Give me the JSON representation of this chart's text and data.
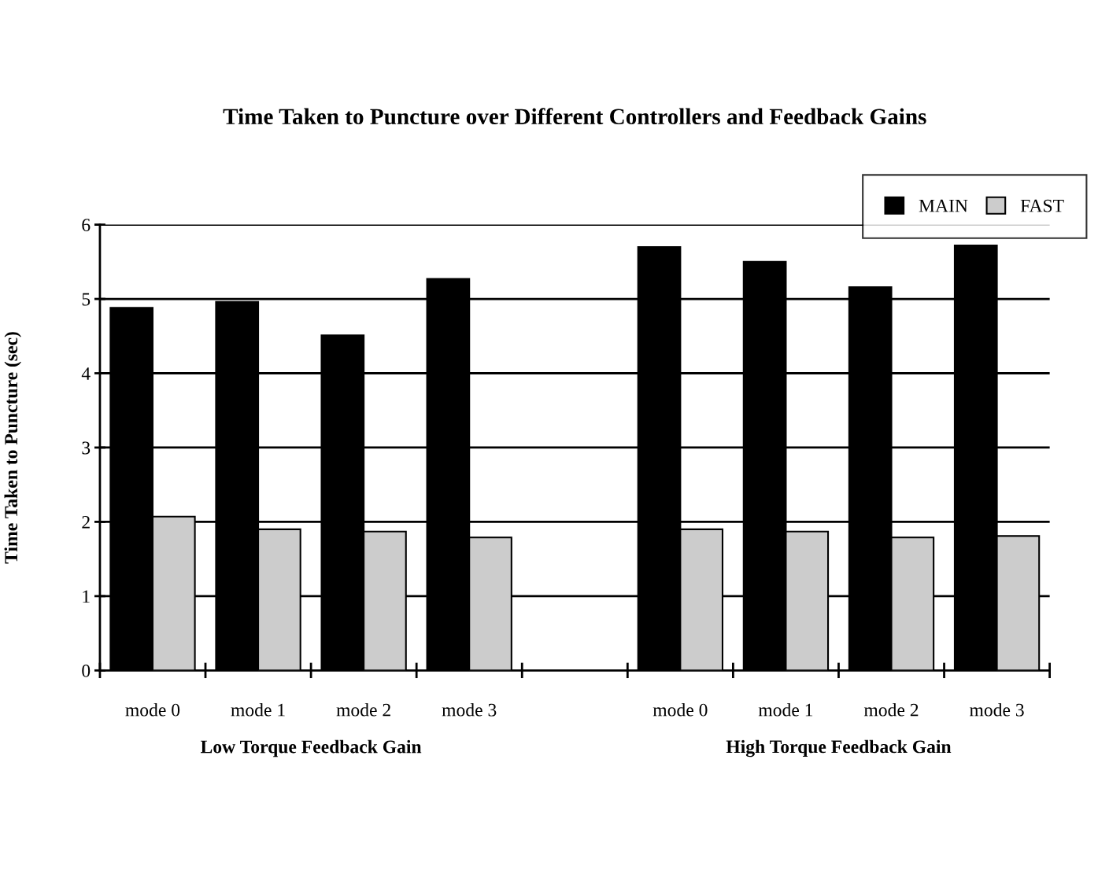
{
  "chart_data": {
    "type": "bar",
    "title": "Time Taken to Puncture over Different Controllers and Feedback Gains",
    "ylabel": "Time Taken to Puncture (sec)",
    "categories": [
      "mode 0",
      "mode 1",
      "mode 2",
      "mode 3",
      null,
      "mode 0",
      "mode 1",
      "mode 2",
      "mode 3"
    ],
    "series": [
      {
        "name": "MAIN",
        "color": "#000000",
        "values": [
          4.88,
          4.96,
          4.51,
          5.27,
          null,
          5.7,
          5.5,
          5.16,
          5.72
        ]
      },
      {
        "name": "FAST",
        "color": "#cccccc",
        "values": [
          2.07,
          1.9,
          1.87,
          1.79,
          null,
          1.9,
          1.87,
          1.79,
          1.81
        ]
      }
    ],
    "annotations": [
      "Low Torque Feedback Gain",
      "High Torque Feedback Gain"
    ],
    "ylim": [
      0,
      6
    ],
    "yticks": [
      0,
      1,
      2,
      3,
      4,
      5,
      6
    ],
    "grid": "y",
    "legend": "top right"
  }
}
